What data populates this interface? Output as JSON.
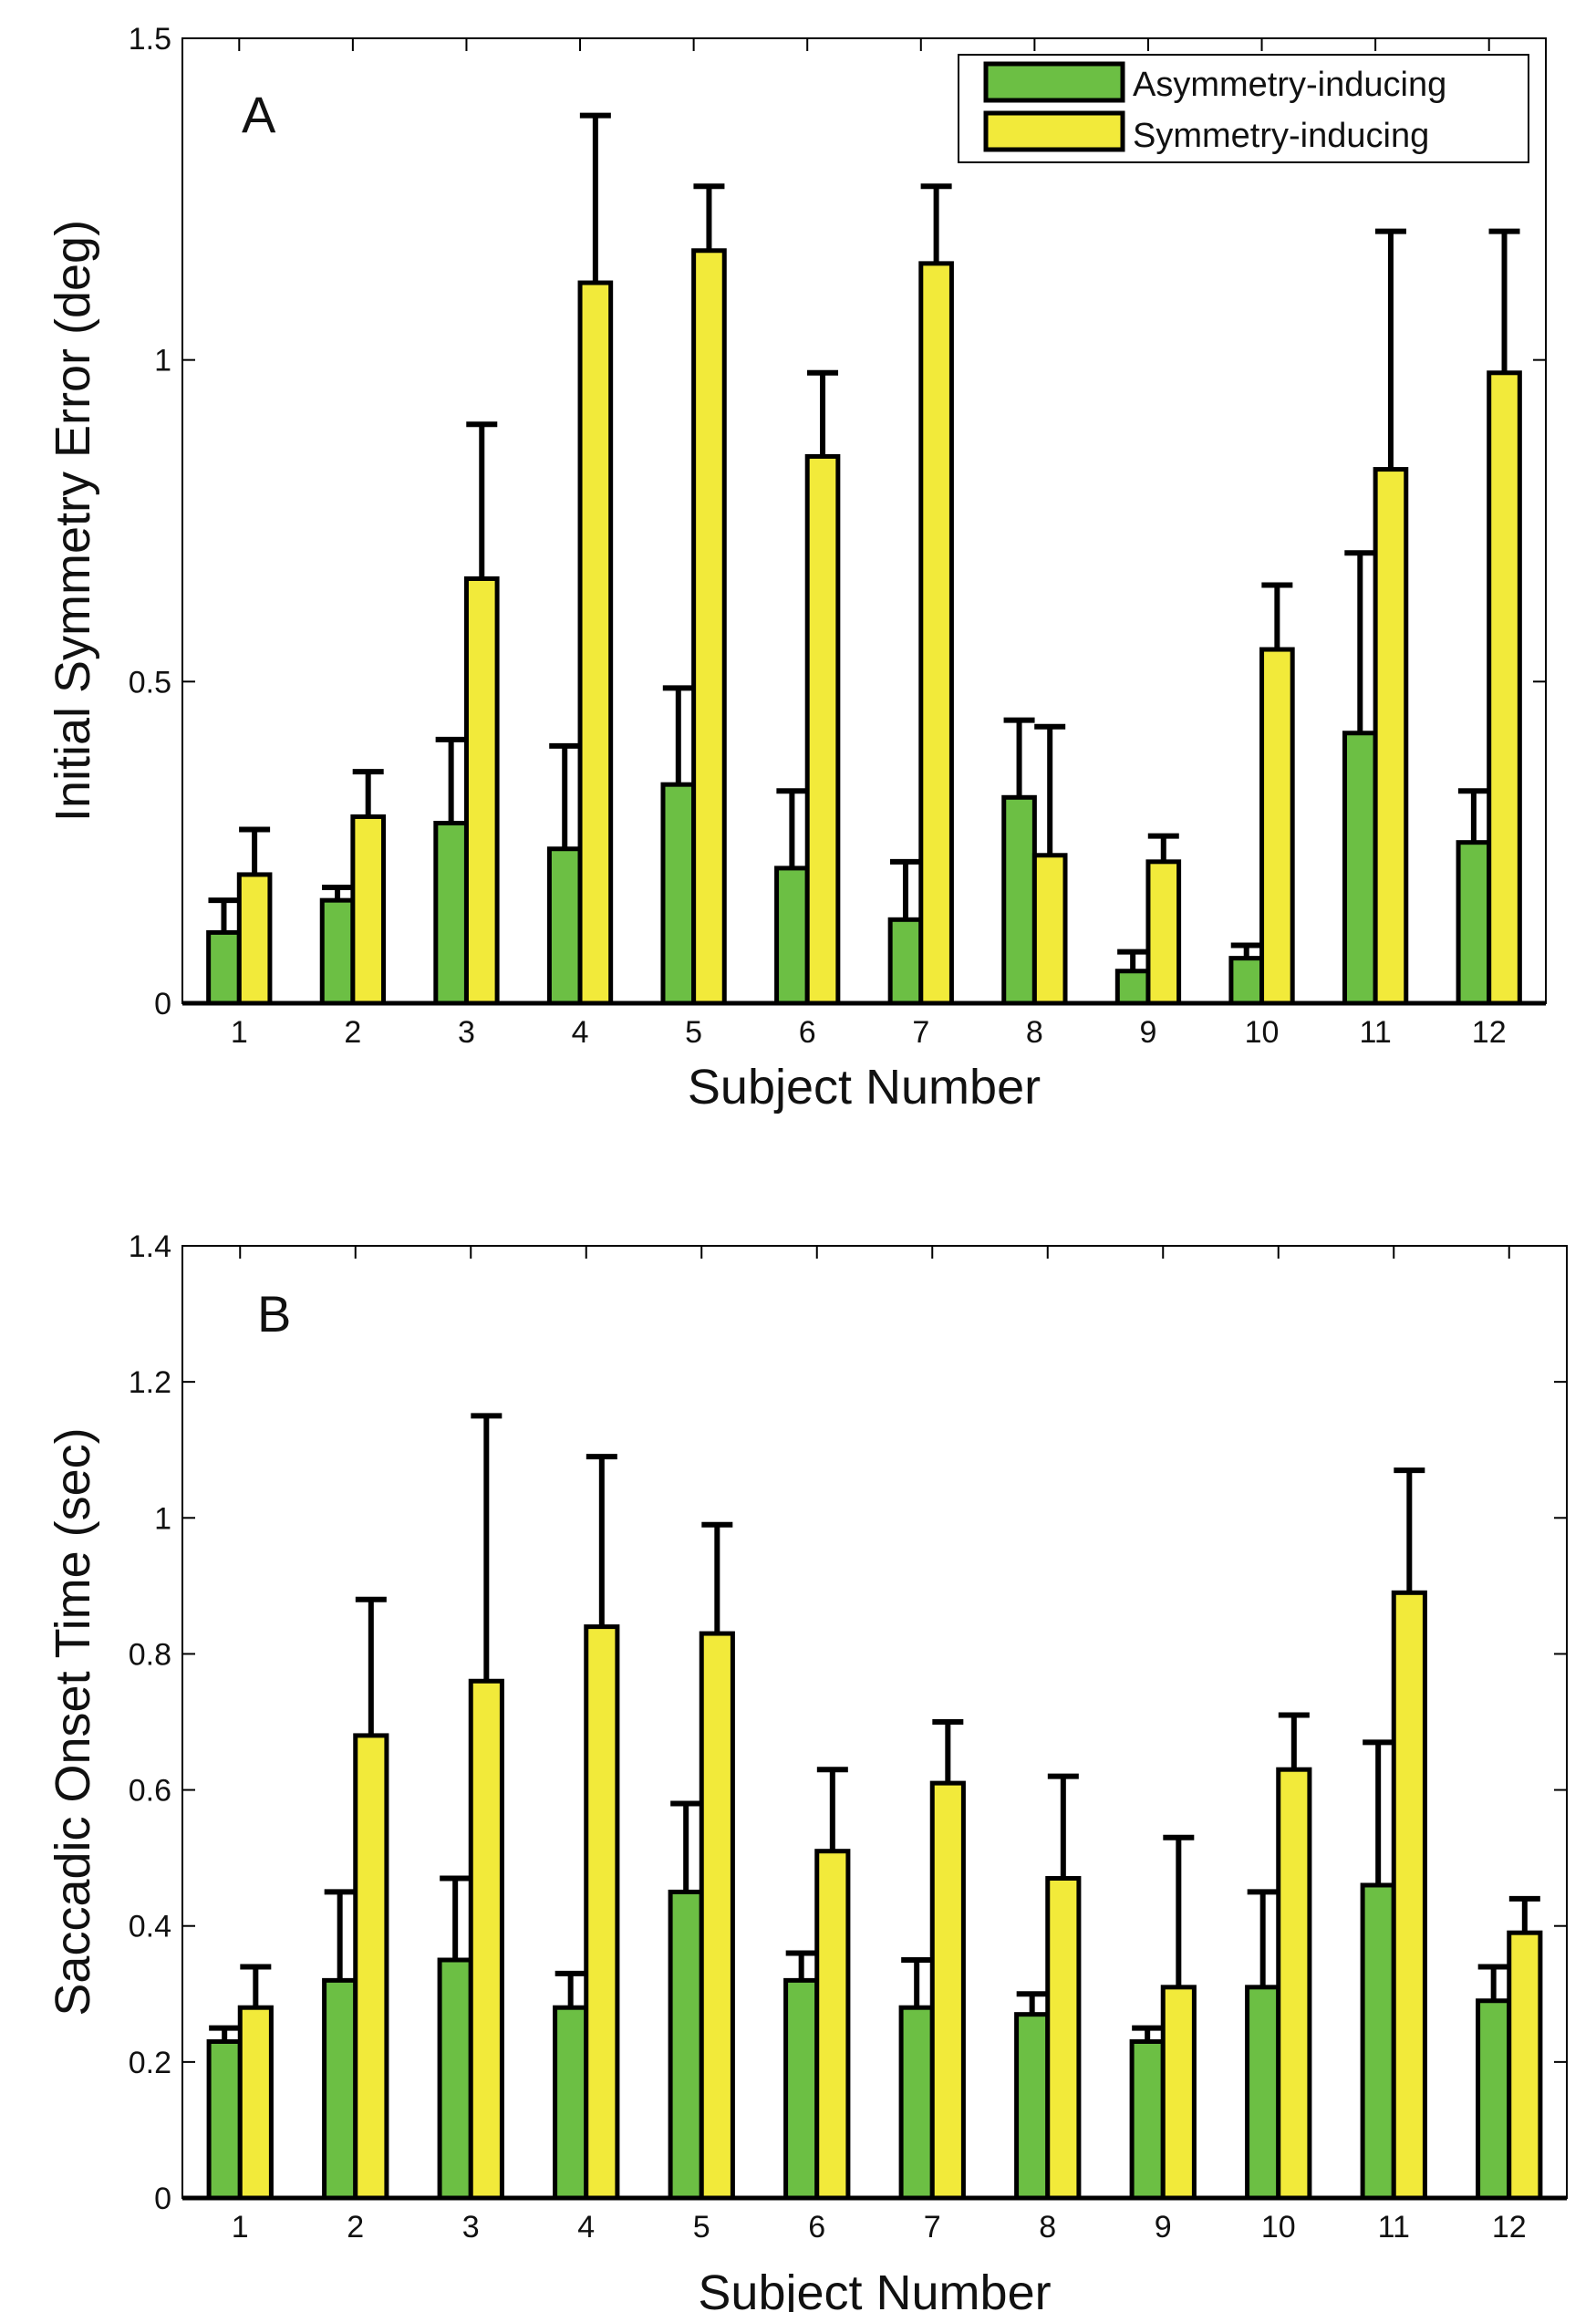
{
  "colors": {
    "asymmetry": "#6cbf44",
    "symmetry": "#f2ea3a",
    "stroke": "#000000"
  },
  "legend": {
    "asymmetry_label": "Asymmetry-inducing",
    "symmetry_label": "Symmetry-inducing"
  },
  "chart_data": [
    {
      "id": "A",
      "type": "bar",
      "panel_label": "A",
      "xlabel": "Subject Number",
      "ylabel": "Initial Symmetry Error (deg)",
      "ylim": [
        0,
        1.5
      ],
      "yticks": [
        0,
        0.5,
        1,
        1.5
      ],
      "ytick_labels": [
        "0",
        "0.5",
        "1",
        "1.5"
      ],
      "categories": [
        "1",
        "2",
        "3",
        "4",
        "5",
        "6",
        "7",
        "8",
        "9",
        "10",
        "11",
        "12"
      ],
      "legend_position": "top-right",
      "series": [
        {
          "name": "Asymmetry-inducing",
          "values": [
            0.11,
            0.16,
            0.28,
            0.24,
            0.34,
            0.21,
            0.13,
            0.32,
            0.05,
            0.07,
            0.42,
            0.25
          ],
          "error": [
            0.05,
            0.02,
            0.13,
            0.16,
            0.15,
            0.12,
            0.09,
            0.12,
            0.03,
            0.02,
            0.28,
            0.08
          ]
        },
        {
          "name": "Symmetry-inducing",
          "values": [
            0.2,
            0.29,
            0.66,
            1.12,
            1.17,
            0.85,
            1.15,
            0.23,
            0.22,
            0.55,
            0.83,
            0.98
          ],
          "error": [
            0.07,
            0.07,
            0.24,
            0.26,
            0.1,
            0.13,
            0.12,
            0.2,
            0.04,
            0.1,
            0.37,
            0.22
          ]
        }
      ]
    },
    {
      "id": "B",
      "type": "bar",
      "panel_label": "B",
      "xlabel": "Subject Number",
      "ylabel": "Saccadic Onset Time (sec)",
      "ylim": [
        0,
        1.4
      ],
      "yticks": [
        0,
        0.2,
        0.4,
        0.6,
        0.8,
        1,
        1.2,
        1.4
      ],
      "ytick_labels": [
        "0",
        "0.2",
        "0.4",
        "0.6",
        "0.8",
        "1",
        "1.2",
        "1.4"
      ],
      "categories": [
        "1",
        "2",
        "3",
        "4",
        "5",
        "6",
        "7",
        "8",
        "9",
        "10",
        "11",
        "12"
      ],
      "legend_position": "none",
      "series": [
        {
          "name": "Asymmetry-inducing",
          "values": [
            0.23,
            0.32,
            0.35,
            0.28,
            0.45,
            0.32,
            0.28,
            0.27,
            0.23,
            0.31,
            0.46,
            0.29
          ],
          "error": [
            0.02,
            0.13,
            0.12,
            0.05,
            0.13,
            0.04,
            0.07,
            0.03,
            0.02,
            0.14,
            0.21,
            0.05
          ]
        },
        {
          "name": "Symmetry-inducing",
          "values": [
            0.28,
            0.68,
            0.76,
            0.84,
            0.83,
            0.51,
            0.61,
            0.47,
            0.31,
            0.63,
            0.89,
            0.39
          ],
          "error": [
            0.06,
            0.2,
            0.39,
            0.25,
            0.16,
            0.12,
            0.09,
            0.15,
            0.22,
            0.08,
            0.18,
            0.05
          ]
        }
      ]
    }
  ]
}
